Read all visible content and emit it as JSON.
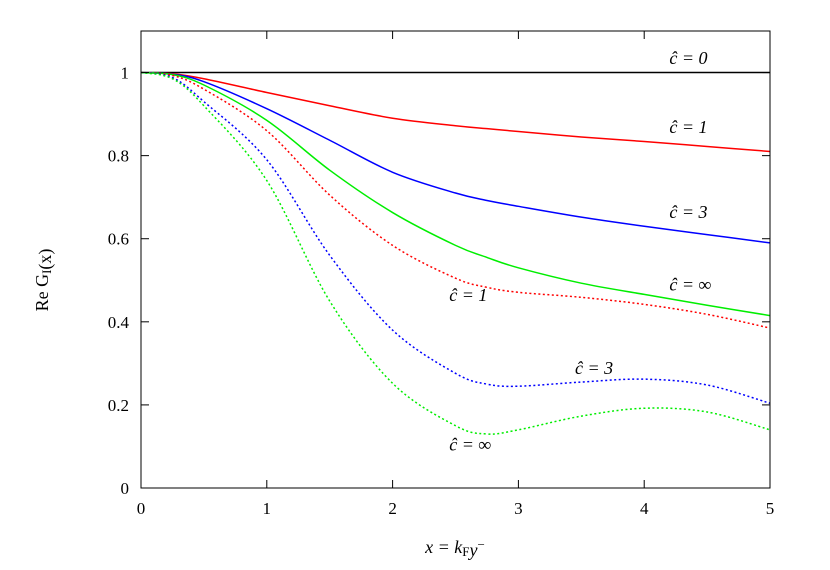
{
  "chart_data": {
    "type": "line",
    "title": "",
    "xlabel": "x = k_F y^-",
    "ylabel": "Re G_I(x)",
    "xlim": [
      0,
      5
    ],
    "ylim": [
      0,
      1.1
    ],
    "xticks": [
      "0",
      "1",
      "2",
      "3",
      "4",
      "5"
    ],
    "yticks": [
      "0",
      "0.2",
      "0.4",
      "0.6",
      "0.8",
      "1"
    ],
    "grid": false,
    "x": [
      0,
      0.25,
      0.5,
      1,
      1.5,
      2,
      2.5,
      2.75,
      3,
      3.5,
      4,
      4.5,
      5
    ],
    "series": [
      {
        "name": "ĉ = 0",
        "color": "#000000",
        "style": "solid",
        "values": [
          1,
          1,
          1,
          1,
          1,
          1,
          1,
          1,
          1,
          1,
          1,
          1,
          1
        ]
      },
      {
        "name": "ĉ = 1",
        "color": "#ff0000",
        "style": "solid",
        "values": [
          1,
          0.997,
          0.985,
          0.952,
          0.92,
          0.89,
          0.872,
          0.865,
          0.858,
          0.845,
          0.834,
          0.822,
          0.81
        ]
      },
      {
        "name": "ĉ = 3",
        "color": "#0000ff",
        "style": "solid",
        "values": [
          1,
          0.996,
          0.978,
          0.913,
          0.837,
          0.76,
          0.71,
          0.692,
          0.678,
          0.652,
          0.63,
          0.61,
          0.59
        ]
      },
      {
        "name": "ĉ = ∞",
        "color": "#00ee00",
        "style": "solid",
        "values": [
          1,
          0.995,
          0.97,
          0.885,
          0.765,
          0.663,
          0.584,
          0.555,
          0.53,
          0.493,
          0.466,
          0.44,
          0.415
        ]
      },
      {
        "name": "ĉ = 1",
        "color": "#ff0000",
        "style": "dotted",
        "values": [
          1,
          0.993,
          0.96,
          0.86,
          0.705,
          0.584,
          0.505,
          0.483,
          0.471,
          0.459,
          0.442,
          0.418,
          0.385
        ]
      },
      {
        "name": "ĉ = 3",
        "color": "#0000ff",
        "style": "dotted",
        "values": [
          1,
          0.988,
          0.93,
          0.79,
          0.56,
          0.38,
          0.276,
          0.25,
          0.245,
          0.255,
          0.262,
          0.248,
          0.204
        ]
      },
      {
        "name": "ĉ = ∞",
        "color": "#00ee00",
        "style": "dotted",
        "values": [
          1,
          0.985,
          0.92,
          0.74,
          0.45,
          0.252,
          0.15,
          0.13,
          0.14,
          0.173,
          0.192,
          0.183,
          0.14
        ]
      }
    ],
    "annotations": [
      {
        "text": "ĉ = 0",
        "x": 4.2,
        "y": 1.02
      },
      {
        "text": "ĉ = 1",
        "x": 4.2,
        "y": 0.855
      },
      {
        "text": "ĉ = 3",
        "x": 4.2,
        "y": 0.65
      },
      {
        "text": "ĉ = ∞",
        "x": 4.2,
        "y": 0.475
      },
      {
        "text": "ĉ = 1",
        "x": 2.45,
        "y": 0.45
      },
      {
        "text": "ĉ = 3",
        "x": 3.45,
        "y": 0.275
      },
      {
        "text": "ĉ = ∞",
        "x": 2.45,
        "y": 0.09
      }
    ]
  }
}
